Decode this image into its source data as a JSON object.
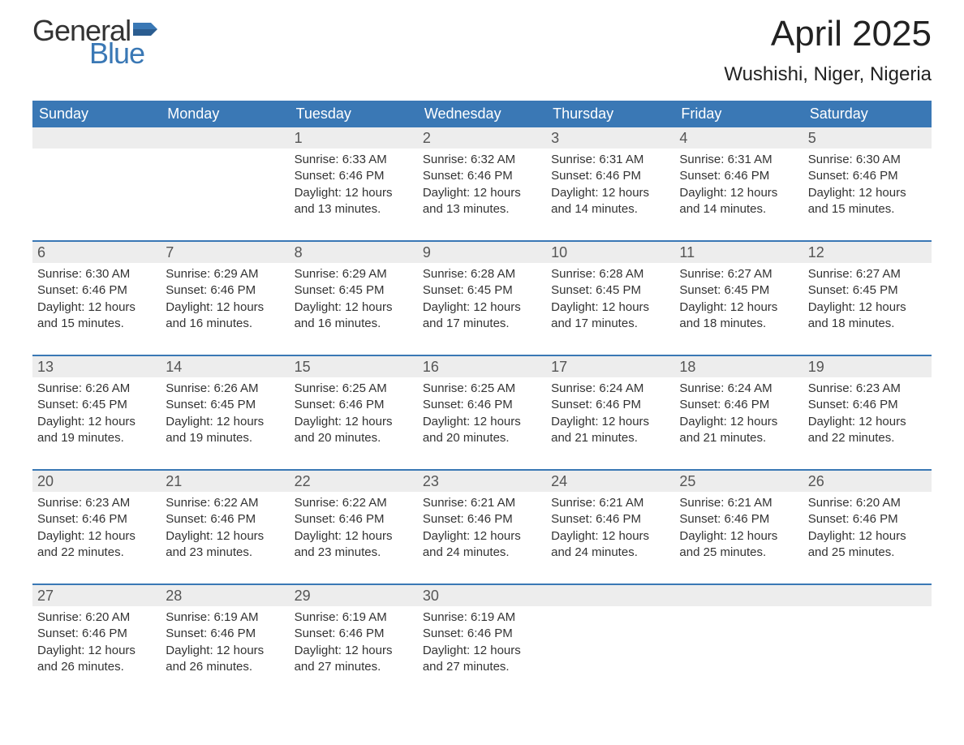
{
  "brand": {
    "word1": "General",
    "word2": "Blue",
    "color_general": "#333333",
    "color_blue": "#3a78b5"
  },
  "title": "April 2025",
  "location": "Wushishi, Niger, Nigeria",
  "colors": {
    "header_bg": "#3a78b5",
    "header_text": "#ffffff",
    "daynum_bg": "#ededed",
    "text": "#333333",
    "week_border": "#3a78b5"
  },
  "day_headers": [
    "Sunday",
    "Monday",
    "Tuesday",
    "Wednesday",
    "Thursday",
    "Friday",
    "Saturday"
  ],
  "weeks": [
    [
      null,
      null,
      {
        "n": "1",
        "sunrise": "6:33 AM",
        "sunset": "6:46 PM",
        "daylight": "12 hours and 13 minutes."
      },
      {
        "n": "2",
        "sunrise": "6:32 AM",
        "sunset": "6:46 PM",
        "daylight": "12 hours and 13 minutes."
      },
      {
        "n": "3",
        "sunrise": "6:31 AM",
        "sunset": "6:46 PM",
        "daylight": "12 hours and 14 minutes."
      },
      {
        "n": "4",
        "sunrise": "6:31 AM",
        "sunset": "6:46 PM",
        "daylight": "12 hours and 14 minutes."
      },
      {
        "n": "5",
        "sunrise": "6:30 AM",
        "sunset": "6:46 PM",
        "daylight": "12 hours and 15 minutes."
      }
    ],
    [
      {
        "n": "6",
        "sunrise": "6:30 AM",
        "sunset": "6:46 PM",
        "daylight": "12 hours and 15 minutes."
      },
      {
        "n": "7",
        "sunrise": "6:29 AM",
        "sunset": "6:46 PM",
        "daylight": "12 hours and 16 minutes."
      },
      {
        "n": "8",
        "sunrise": "6:29 AM",
        "sunset": "6:45 PM",
        "daylight": "12 hours and 16 minutes."
      },
      {
        "n": "9",
        "sunrise": "6:28 AM",
        "sunset": "6:45 PM",
        "daylight": "12 hours and 17 minutes."
      },
      {
        "n": "10",
        "sunrise": "6:28 AM",
        "sunset": "6:45 PM",
        "daylight": "12 hours and 17 minutes."
      },
      {
        "n": "11",
        "sunrise": "6:27 AM",
        "sunset": "6:45 PM",
        "daylight": "12 hours and 18 minutes."
      },
      {
        "n": "12",
        "sunrise": "6:27 AM",
        "sunset": "6:45 PM",
        "daylight": "12 hours and 18 minutes."
      }
    ],
    [
      {
        "n": "13",
        "sunrise": "6:26 AM",
        "sunset": "6:45 PM",
        "daylight": "12 hours and 19 minutes."
      },
      {
        "n": "14",
        "sunrise": "6:26 AM",
        "sunset": "6:45 PM",
        "daylight": "12 hours and 19 minutes."
      },
      {
        "n": "15",
        "sunrise": "6:25 AM",
        "sunset": "6:46 PM",
        "daylight": "12 hours and 20 minutes."
      },
      {
        "n": "16",
        "sunrise": "6:25 AM",
        "sunset": "6:46 PM",
        "daylight": "12 hours and 20 minutes."
      },
      {
        "n": "17",
        "sunrise": "6:24 AM",
        "sunset": "6:46 PM",
        "daylight": "12 hours and 21 minutes."
      },
      {
        "n": "18",
        "sunrise": "6:24 AM",
        "sunset": "6:46 PM",
        "daylight": "12 hours and 21 minutes."
      },
      {
        "n": "19",
        "sunrise": "6:23 AM",
        "sunset": "6:46 PM",
        "daylight": "12 hours and 22 minutes."
      }
    ],
    [
      {
        "n": "20",
        "sunrise": "6:23 AM",
        "sunset": "6:46 PM",
        "daylight": "12 hours and 22 minutes."
      },
      {
        "n": "21",
        "sunrise": "6:22 AM",
        "sunset": "6:46 PM",
        "daylight": "12 hours and 23 minutes."
      },
      {
        "n": "22",
        "sunrise": "6:22 AM",
        "sunset": "6:46 PM",
        "daylight": "12 hours and 23 minutes."
      },
      {
        "n": "23",
        "sunrise": "6:21 AM",
        "sunset": "6:46 PM",
        "daylight": "12 hours and 24 minutes."
      },
      {
        "n": "24",
        "sunrise": "6:21 AM",
        "sunset": "6:46 PM",
        "daylight": "12 hours and 24 minutes."
      },
      {
        "n": "25",
        "sunrise": "6:21 AM",
        "sunset": "6:46 PM",
        "daylight": "12 hours and 25 minutes."
      },
      {
        "n": "26",
        "sunrise": "6:20 AM",
        "sunset": "6:46 PM",
        "daylight": "12 hours and 25 minutes."
      }
    ],
    [
      {
        "n": "27",
        "sunrise": "6:20 AM",
        "sunset": "6:46 PM",
        "daylight": "12 hours and 26 minutes."
      },
      {
        "n": "28",
        "sunrise": "6:19 AM",
        "sunset": "6:46 PM",
        "daylight": "12 hours and 26 minutes."
      },
      {
        "n": "29",
        "sunrise": "6:19 AM",
        "sunset": "6:46 PM",
        "daylight": "12 hours and 27 minutes."
      },
      {
        "n": "30",
        "sunrise": "6:19 AM",
        "sunset": "6:46 PM",
        "daylight": "12 hours and 27 minutes."
      },
      null,
      null,
      null
    ]
  ],
  "labels": {
    "sunrise": "Sunrise: ",
    "sunset": "Sunset: ",
    "daylight": "Daylight: "
  }
}
